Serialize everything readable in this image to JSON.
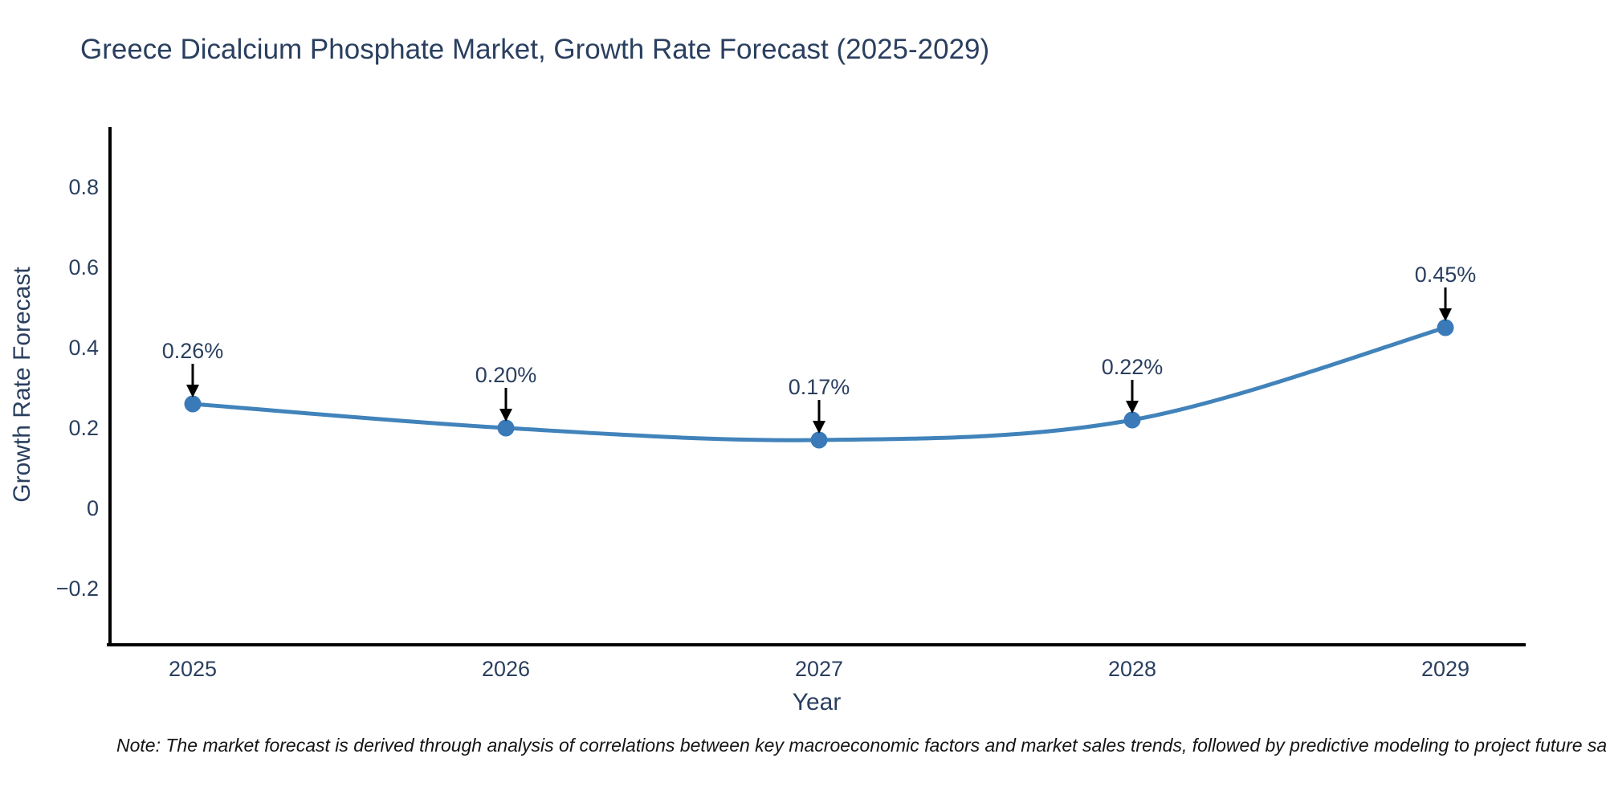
{
  "title": "Greece Dicalcium Phosphate Market, Growth Rate Forecast (2025-2029)",
  "note": "Note: The market forecast is derived through analysis of correlations between key macroeconomic factors and market sales trends, followed by predictive modeling to project future sa",
  "chart_data": {
    "type": "line",
    "title": "Greece Dicalcium Phosphate Market, Growth Rate Forecast (2025-2029)",
    "xlabel": "Year",
    "ylabel": "Growth Rate Forecast",
    "categories": [
      "2025",
      "2026",
      "2027",
      "2028",
      "2029"
    ],
    "values": [
      0.26,
      0.2,
      0.17,
      0.22,
      0.45
    ],
    "point_labels": [
      "0.26%",
      "0.20%",
      "0.17%",
      "0.22%",
      "0.45%"
    ],
    "y_ticks": [
      {
        "v": 0.8,
        "label": "0.8"
      },
      {
        "v": 0.6,
        "label": "0.6"
      },
      {
        "v": 0.4,
        "label": "0.4"
      },
      {
        "v": 0.2,
        "label": "0.2"
      },
      {
        "v": 0,
        "label": "0"
      },
      {
        "v": -0.2,
        "label": "−0.2"
      }
    ],
    "ylim": [
      -0.34,
      0.95
    ],
    "grid": false,
    "legend": "none",
    "line_shape": "spline",
    "annotations_have_arrows": true,
    "colors": {
      "line": "#4183ba",
      "marker": "#3a7ab8",
      "axis": "#000000",
      "arrow": "#000000",
      "tick_text": "#2a3f5f",
      "annotation_text": "#2a3f5f",
      "title_text": "#2a3f5f",
      "note_text": "#141414"
    }
  }
}
